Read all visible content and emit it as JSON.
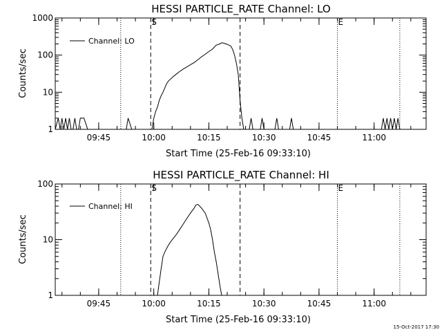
{
  "timestamp": "15-Oct-2017 17:30",
  "chart_data": [
    {
      "type": "line",
      "title": "HESSI PARTICLE_RATE Channel: LO",
      "xlabel": "Start Time (25-Feb-16 09:33:10)",
      "ylabel": "Counts/sec",
      "y_scale": "log",
      "ylim": [
        1,
        1000
      ],
      "xlim": [
        "09:33:10",
        "11:14:10"
      ],
      "x_ticks": [
        "09:45",
        "10:00",
        "10:15",
        "10:30",
        "10:45",
        "11:00"
      ],
      "y_ticks": [
        "1",
        "10",
        "100",
        "1000"
      ],
      "legend": {
        "entries": [
          "Channel: LO"
        ],
        "position": "top-left"
      },
      "markers": [
        {
          "type": "dotted",
          "x": "09:51:00"
        },
        {
          "type": "dashed",
          "x": "09:59:10",
          "label": "S"
        },
        {
          "type": "dashed",
          "x": "10:23:30"
        },
        {
          "type": "dotted",
          "x": "10:50:00",
          "label": "E"
        },
        {
          "type": "dotted",
          "x": "11:07:00"
        }
      ],
      "series": [
        {
          "name": "Channel: LO",
          "x": [
            "09:33:10",
            "09:34:00",
            "09:34:30",
            "09:35:00",
            "09:35:30",
            "09:36:00",
            "09:36:30",
            "09:37:00",
            "09:37:30",
            "09:38:00",
            "09:38:30",
            "09:39:00",
            "09:39:30",
            "09:40:00",
            "09:41:00",
            "09:42:00",
            "09:43:00",
            "09:43:30",
            "09:44:00",
            "09:44:30",
            "09:45:00",
            "09:46:00",
            "09:47:00",
            "09:48:00",
            "09:48:30",
            "09:49:00",
            "09:50:00",
            "09:51:00",
            "09:52:00",
            "09:52:30",
            "09:53:00",
            "09:54:00",
            "09:55:00",
            "09:56:00",
            "09:57:00",
            "09:58:00",
            "09:59:00",
            "09:59:30",
            "10:00:00",
            "10:00:30",
            "10:01:00",
            "10:01:30",
            "10:02:00",
            "10:02:30",
            "10:03:00",
            "10:03:30",
            "10:04:00",
            "10:05:00",
            "10:06:00",
            "10:07:00",
            "10:08:00",
            "10:09:00",
            "10:10:00",
            "10:11:00",
            "10:12:00",
            "10:13:00",
            "10:14:00",
            "10:15:00",
            "10:16:00",
            "10:16:30",
            "10:17:00",
            "10:18:00",
            "10:18:30",
            "10:19:00",
            "10:20:00",
            "10:21:00",
            "10:21:30",
            "10:22:00",
            "10:22:30",
            "10:23:00",
            "10:23:30",
            "10:24:00",
            "10:24:30",
            "10:25:00",
            "10:26:00",
            "10:26:30",
            "10:27:00",
            "10:28:00",
            "10:29:00",
            "10:29:30",
            "10:30:00",
            "10:31:00",
            "10:32:00",
            "10:33:00",
            "10:33:30",
            "10:34:00",
            "10:35:00",
            "10:36:00",
            "10:37:00",
            "10:37:30",
            "10:38:00",
            "10:39:00",
            "10:40:00",
            "10:41:00",
            "10:42:00",
            "10:43:00",
            "10:44:00",
            "10:45:00",
            "10:46:00",
            "10:47:00",
            "10:48:00",
            "10:49:00",
            "10:50:00",
            "10:51:00",
            "10:52:00",
            "10:53:00",
            "10:54:00",
            "10:55:00",
            "10:56:00",
            "10:57:00",
            "10:58:00",
            "10:59:00",
            "11:00:00",
            "11:01:00",
            "11:02:00",
            "11:02:30",
            "11:03:00",
            "11:03:30",
            "11:04:00",
            "11:04:30",
            "11:05:00",
            "11:05:30",
            "11:06:00",
            "11:06:30",
            "11:07:00"
          ],
          "y": [
            1,
            2,
            1,
            2,
            1,
            2,
            1,
            2,
            1,
            1,
            2,
            1,
            1,
            2,
            2,
            1,
            1,
            1,
            1,
            1,
            1,
            1,
            1,
            1,
            1,
            1,
            1,
            1,
            1,
            1,
            2,
            1,
            1,
            1,
            1,
            1,
            1,
            1,
            2,
            3,
            4,
            6,
            8,
            10,
            13,
            17,
            20,
            25,
            30,
            36,
            42,
            48,
            55,
            63,
            75,
            90,
            105,
            125,
            145,
            165,
            185,
            200,
            215,
            210,
            195,
            175,
            140,
            100,
            60,
            30,
            6,
            2,
            1,
            1,
            1,
            2,
            1,
            1,
            1,
            2,
            1,
            1,
            1,
            1,
            2,
            1,
            1,
            1,
            1,
            2,
            1,
            1,
            1,
            1,
            1,
            1,
            1,
            1,
            1,
            1,
            1,
            1,
            1,
            1,
            1,
            1,
            1,
            1,
            1,
            1,
            1,
            1,
            1,
            1,
            1,
            2,
            1,
            2,
            1,
            2,
            1,
            2,
            1,
            2,
            1
          ]
        }
      ]
    },
    {
      "type": "line",
      "title": "HESSI PARTICLE_RATE Channel: HI",
      "xlabel": "Start Time (25-Feb-16 09:33:10)",
      "ylabel": "Counts/sec",
      "y_scale": "log",
      "ylim": [
        1,
        100
      ],
      "xlim": [
        "09:33:10",
        "11:14:10"
      ],
      "x_ticks": [
        "09:45",
        "10:00",
        "10:15",
        "10:30",
        "10:45",
        "11:00"
      ],
      "y_ticks": [
        "1",
        "10",
        "100"
      ],
      "legend": {
        "entries": [
          "Channel: HI"
        ],
        "position": "top-left"
      },
      "markers": [
        {
          "type": "dotted",
          "x": "09:51:00"
        },
        {
          "type": "dashed",
          "x": "09:59:10",
          "label": "S"
        },
        {
          "type": "dashed",
          "x": "10:23:30"
        },
        {
          "type": "dotted",
          "x": "10:50:00",
          "label": "E"
        },
        {
          "type": "dotted",
          "x": "11:07:00"
        }
      ],
      "series": [
        {
          "name": "Channel: HI",
          "x": [
            "10:01:00",
            "10:02:00",
            "10:02:30",
            "10:03:00",
            "10:04:00",
            "10:05:00",
            "10:06:00",
            "10:07:00",
            "10:08:00",
            "10:09:00",
            "10:10:00",
            "10:11:00",
            "10:11:30",
            "10:12:00",
            "10:12:30",
            "10:13:00",
            "10:14:00",
            "10:15:00",
            "10:15:30",
            "10:16:00",
            "10:16:30",
            "10:17:00",
            "10:17:30",
            "10:18:00",
            "10:18:30"
          ],
          "y": [
            1,
            3,
            5,
            6,
            8,
            10,
            12,
            15,
            19,
            24,
            30,
            37,
            42,
            43,
            40,
            37,
            30,
            20,
            15,
            10,
            6,
            4,
            2.5,
            1.5,
            1
          ]
        }
      ]
    }
  ]
}
